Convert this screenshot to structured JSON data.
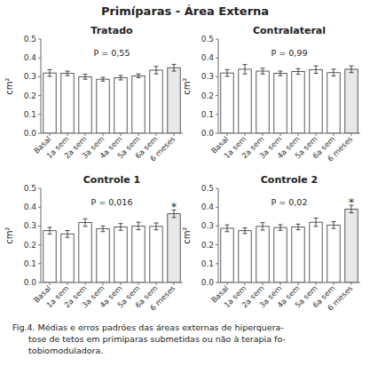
{
  "title": "Primíparas - Área Externa",
  "caption": [
    "Fig.4. Médias e erros padrões das áreas externas de hiperquera-",
    "      tose de tetos em primíparas submetidas ou não à terapia fo-",
    "      tobiomoduladora."
  ],
  "chart_data": [
    {
      "type": "bar",
      "title": "Tratado",
      "categories": [
        "Basal",
        "1a sem",
        "2a sem",
        "3a sem",
        "4a sem",
        "5a sem",
        "6a sem",
        "6 meses"
      ],
      "values": [
        0.32,
        0.318,
        0.3,
        0.287,
        0.295,
        0.305,
        0.335,
        0.348
      ],
      "errors": [
        0.018,
        0.012,
        0.013,
        0.01,
        0.012,
        0.01,
        0.02,
        0.018
      ],
      "colors": [
        "#ffffff",
        "#ffffff",
        "#ffffff",
        "#ffffff",
        "#ffffff",
        "#ffffff",
        "#ffffff",
        "#e8e8e8"
      ],
      "ylabel": "cm²",
      "ylim": [
        0.0,
        0.5
      ],
      "yticks": [
        {
          "value": 0.0,
          "label": "0.0"
        },
        0.1,
        0.2,
        0.3,
        0.4,
        0.5
      ],
      "annotations": [
        {
          "text": "P = 0,55"
        }
      ]
    },
    {
      "type": "bar",
      "title": "Contralateral",
      "categories": [
        "Basal",
        "1a sem",
        "2a sem",
        "3a sem",
        "4a sem",
        "5a sem",
        "6a sem",
        "6 meses"
      ],
      "values": [
        0.32,
        0.34,
        0.33,
        0.318,
        0.328,
        0.338,
        0.322,
        0.34
      ],
      "errors": [
        0.018,
        0.025,
        0.015,
        0.012,
        0.015,
        0.02,
        0.018,
        0.018
      ],
      "colors": [
        "#ffffff",
        "#ffffff",
        "#ffffff",
        "#ffffff",
        "#ffffff",
        "#ffffff",
        "#ffffff",
        "#e8e8e8"
      ],
      "ylabel": "cm²",
      "ylim": [
        0.0,
        0.5
      ],
      "yticks": [
        {
          "value": 0.0,
          "label": "0.0"
        },
        0.1,
        0.2,
        0.3,
        0.4,
        0.5
      ],
      "annotations": [
        {
          "text": "P = 0,99"
        }
      ]
    },
    {
      "type": "bar",
      "title": "Controle 1",
      "categories": [
        "Basal",
        "1a sem",
        "2a sem",
        "3a sem",
        "4a sem",
        "5a sem",
        "6a sem",
        "6 meses"
      ],
      "values": [
        0.275,
        0.258,
        0.318,
        0.285,
        0.295,
        0.3,
        0.298,
        0.365
      ],
      "errors": [
        0.018,
        0.018,
        0.02,
        0.015,
        0.018,
        0.02,
        0.018,
        0.02
      ],
      "colors": [
        "#ffffff",
        "#ffffff",
        "#ffffff",
        "#ffffff",
        "#ffffff",
        "#ffffff",
        "#ffffff",
        "#e8e8e8"
      ],
      "ylabel": "cm²",
      "ylim": [
        0.0,
        0.5
      ],
      "yticks": [
        {
          "value": 0.0,
          "label": "0.0"
        },
        0.1,
        0.2,
        0.3,
        0.4,
        0.5
      ],
      "annotations": [
        {
          "text": "P = 0,016"
        },
        {
          "text": "*",
          "x": "6 meses"
        }
      ]
    },
    {
      "type": "bar",
      "title": "Controle 2",
      "categories": [
        "Basal",
        "1a sem",
        "2a sem",
        "3a sem",
        "4a sem",
        "5a sem",
        "6a sem",
        "6 meses"
      ],
      "values": [
        0.288,
        0.275,
        0.298,
        0.292,
        0.295,
        0.32,
        0.305,
        0.39
      ],
      "errors": [
        0.018,
        0.015,
        0.02,
        0.015,
        0.015,
        0.022,
        0.018,
        0.02
      ],
      "colors": [
        "#ffffff",
        "#ffffff",
        "#ffffff",
        "#ffffff",
        "#ffffff",
        "#ffffff",
        "#ffffff",
        "#e8e8e8"
      ],
      "ylabel": "cm²",
      "ylim": [
        0.0,
        0.5
      ],
      "yticks": [
        {
          "value": 0.0,
          "label": "0.0"
        },
        0.1,
        0.2,
        0.3,
        0.4,
        0.5
      ],
      "annotations": [
        {
          "text": "P = 0,02"
        },
        {
          "text": "*",
          "x": "6 meses"
        }
      ]
    }
  ]
}
